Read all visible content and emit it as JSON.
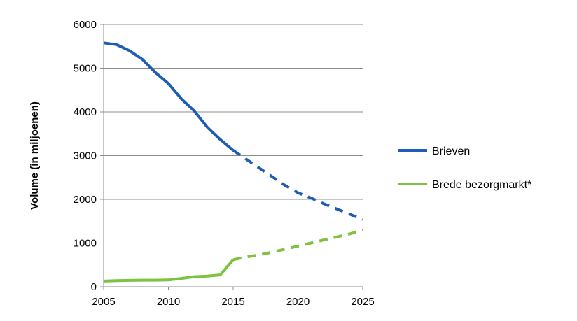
{
  "chart_data": {
    "type": "line",
    "title": "",
    "xlabel": "",
    "ylabel": "Volume (in miljoenen)",
    "xlim": [
      2005,
      2025
    ],
    "ylim": [
      0,
      6000
    ],
    "x_ticks": [
      "2005",
      "2010",
      "2015",
      "2020",
      "2025"
    ],
    "y_ticks": [
      "0",
      "1000",
      "2000",
      "3000",
      "4000",
      "5000",
      "6000"
    ],
    "grid": "horizontal",
    "legend_position": "right",
    "series": [
      {
        "name": "Brieven",
        "color": "#1f5cb3",
        "points": [
          [
            2005,
            5580
          ],
          [
            2006,
            5540
          ],
          [
            2007,
            5400
          ],
          [
            2008,
            5200
          ],
          [
            2009,
            4900
          ],
          [
            2010,
            4650
          ],
          [
            2011,
            4300
          ],
          [
            2012,
            4020
          ],
          [
            2013,
            3650
          ],
          [
            2014,
            3370
          ],
          [
            2015,
            3120
          ],
          [
            2016,
            2920
          ],
          [
            2017,
            2720
          ],
          [
            2018,
            2520
          ],
          [
            2019,
            2320
          ],
          [
            2020,
            2150
          ],
          [
            2021,
            2030
          ],
          [
            2022,
            1900
          ],
          [
            2023,
            1780
          ],
          [
            2024,
            1660
          ],
          [
            2025,
            1540
          ]
        ],
        "actual_until": 2015
      },
      {
        "name": "Brede bezorgmarkt*",
        "color": "#7dc242",
        "points": [
          [
            2005,
            130
          ],
          [
            2006,
            140
          ],
          [
            2007,
            145
          ],
          [
            2008,
            150
          ],
          [
            2009,
            150
          ],
          [
            2010,
            155
          ],
          [
            2011,
            190
          ],
          [
            2012,
            230
          ],
          [
            2013,
            245
          ],
          [
            2014,
            270
          ],
          [
            2015,
            620
          ],
          [
            2016,
            680
          ],
          [
            2017,
            730
          ],
          [
            2018,
            790
          ],
          [
            2019,
            860
          ],
          [
            2020,
            930
          ],
          [
            2021,
            1000
          ],
          [
            2022,
            1070
          ],
          [
            2023,
            1140
          ],
          [
            2024,
            1210
          ],
          [
            2025,
            1300
          ]
        ],
        "actual_until": 2015
      }
    ]
  }
}
